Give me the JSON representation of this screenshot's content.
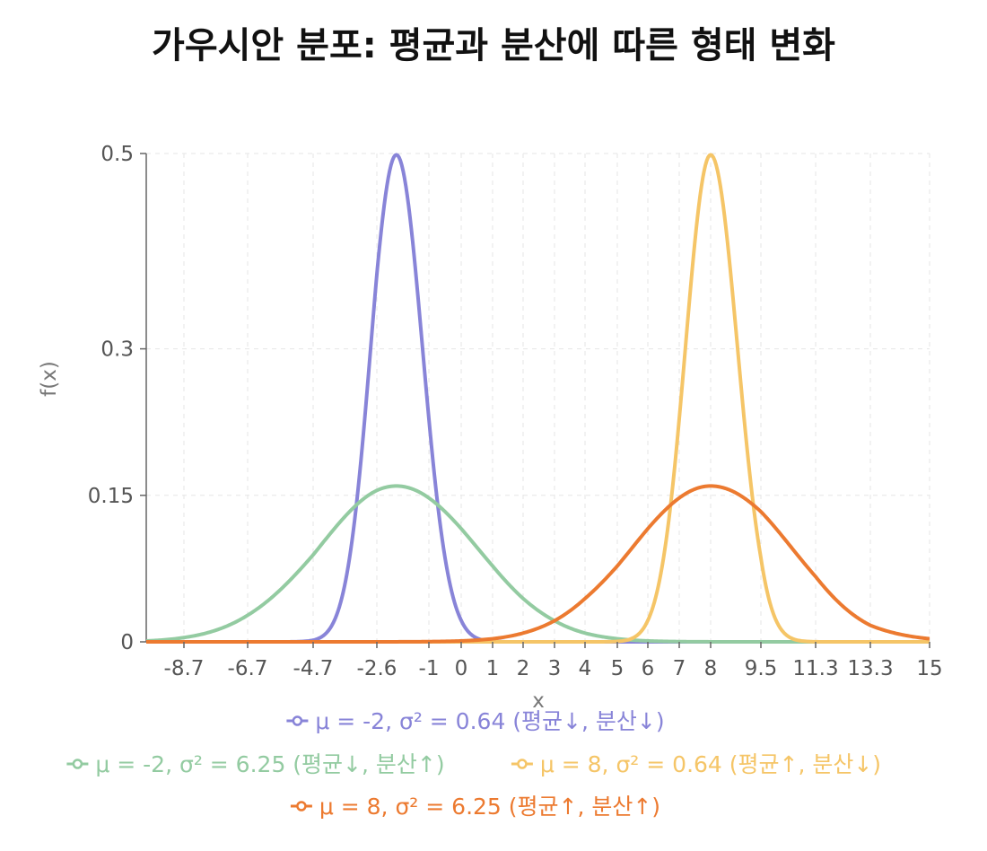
{
  "chart_data": {
    "type": "line",
    "title": "가우시안 분포: 평균과 분산에 따른 형태 변화",
    "xlabel": "x",
    "ylabel": "f(x)",
    "xlim": [
      -10,
      15
    ],
    "ylim": [
      0,
      0.5
    ],
    "x_ticks": [
      "-8.7",
      "-6.7",
      "-4.7",
      "-2.6",
      "-1",
      "0",
      "1",
      "2",
      "3",
      "4",
      "5",
      "6",
      "7",
      "8",
      "9.5",
      "11.3",
      "13.3",
      "15"
    ],
    "y_ticks": [
      "0",
      "0.15",
      "0.3",
      "0.5"
    ],
    "grid": true,
    "legend_position": "bottom",
    "series": [
      {
        "name": "μ = -2, σ² = 0.64 (평균↓, 분산↓)",
        "mu": -2,
        "variance": 0.64,
        "color": "#8884d8",
        "x_range": [
          -10,
          15
        ]
      },
      {
        "name": "μ = -2, σ² = 6.25 (평균↓, 분산↑)",
        "mu": -2,
        "variance": 6.25,
        "color": "#93cba1",
        "x_range": [
          -10,
          15
        ]
      },
      {
        "name": "μ = 8, σ² = 0.64 (평균↑, 분산↓)",
        "mu": 8,
        "variance": 0.64,
        "color": "#f5c567",
        "x_range": [
          -10,
          15
        ]
      },
      {
        "name": "μ = 8, σ² = 6.25 (평균↑, 분산↑)",
        "mu": 8,
        "variance": 6.25,
        "color": "#ec7a30",
        "x_range": [
          -10,
          15
        ]
      }
    ]
  }
}
